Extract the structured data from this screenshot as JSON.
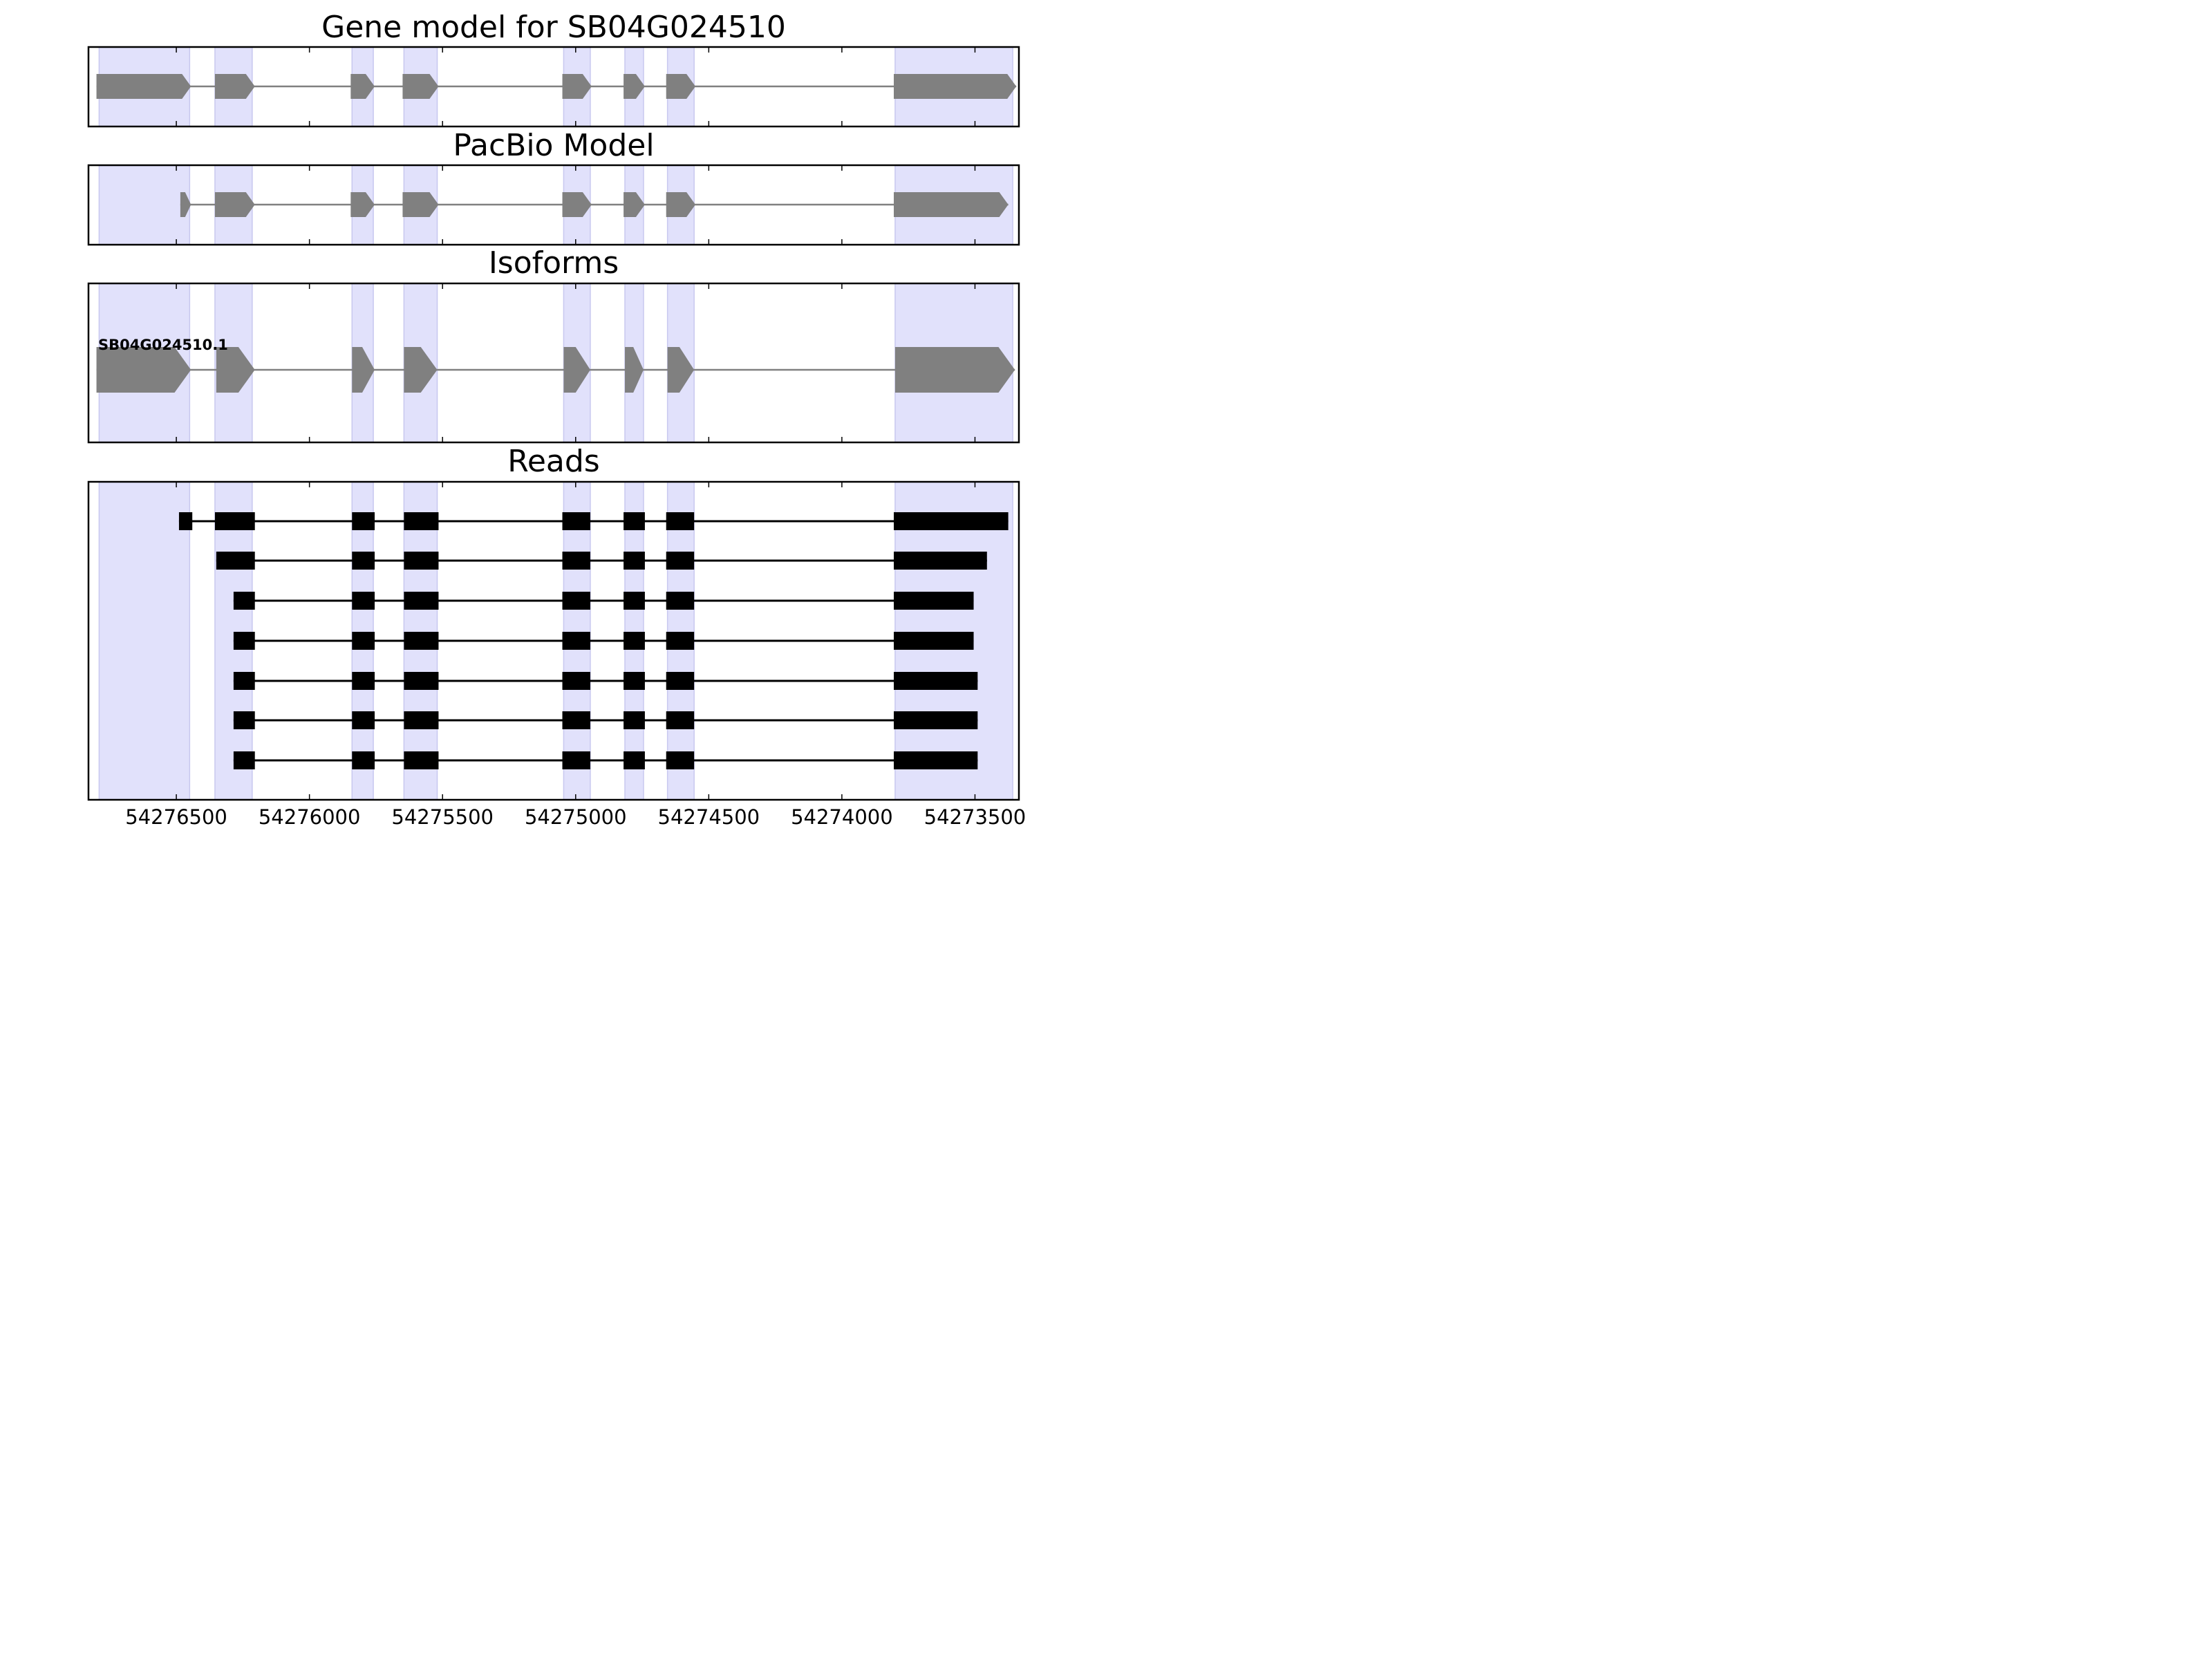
{
  "figure": {
    "x_axis": {
      "reversed": true,
      "range": [
        54276830,
        54273335
      ],
      "ticks": [
        54276500,
        54276000,
        54275500,
        54275000,
        54274500,
        54274000,
        54273500
      ],
      "tick_labels": [
        "54276500",
        "54276000",
        "54275500",
        "54275000",
        "54274500",
        "54274000",
        "54273500"
      ]
    },
    "exon_bands": [
      [
        54276790,
        54276450
      ],
      [
        54276355,
        54276215
      ],
      [
        54275840,
        54275760
      ],
      [
        54275645,
        54275520
      ],
      [
        54275045,
        54274945
      ],
      [
        54274815,
        54274745
      ],
      [
        54274655,
        54274555
      ],
      [
        54273800,
        54273358
      ]
    ],
    "colors": {
      "band": "#e1e1fb",
      "model_feature": "#808080",
      "read_feature": "#000000"
    },
    "panels": [
      {
        "id": "gene-model",
        "title": "Gene model for SB04G024510",
        "tracks": [
          {
            "style": "model",
            "exons": [
              [
                54276800,
                54276445
              ],
              [
                54276355,
                54276205
              ],
              [
                54275845,
                54275755
              ],
              [
                54275650,
                54275515
              ],
              [
                54275050,
                54274940
              ],
              [
                54274820,
                54274740
              ],
              [
                54274660,
                54274550
              ],
              [
                54273805,
                54273345
              ]
            ]
          }
        ]
      },
      {
        "id": "pacbio-model",
        "title": "PacBio Model",
        "tracks": [
          {
            "style": "model",
            "exons": [
              [
                54276485,
                54276445
              ],
              [
                54276355,
                54276205
              ],
              [
                54275845,
                54275755
              ],
              [
                54275650,
                54275515
              ],
              [
                54275050,
                54274940
              ],
              [
                54274820,
                54274740
              ],
              [
                54274660,
                54274550
              ],
              [
                54273805,
                54273375
              ]
            ]
          }
        ]
      },
      {
        "id": "isoforms",
        "title": "Isoforms",
        "tracks": [
          {
            "style": "model",
            "label": "SB04G024510.1",
            "exons": [
              [
                54276800,
                54276445
              ],
              [
                54276350,
                54276205
              ],
              [
                54275840,
                54275755
              ],
              [
                54275645,
                54275520
              ],
              [
                54275045,
                54274945
              ],
              [
                54274815,
                54274745
              ],
              [
                54274655,
                54274555
              ],
              [
                54273800,
                54273350
              ]
            ]
          }
        ]
      },
      {
        "id": "reads",
        "title": "Reads",
        "tracks": [
          {
            "style": "read",
            "exons": [
              [
                54276490,
                54276440
              ],
              [
                54276355,
                54276205
              ],
              [
                54275840,
                54275755
              ],
              [
                54275645,
                54275515
              ],
              [
                54275050,
                54274945
              ],
              [
                54274820,
                54274740
              ],
              [
                54274660,
                54274555
              ],
              [
                54273805,
                54273375
              ]
            ]
          },
          {
            "style": "read",
            "exons": [
              [
                54276350,
                54276205
              ],
              [
                54275840,
                54275755
              ],
              [
                54275645,
                54275515
              ],
              [
                54275050,
                54274945
              ],
              [
                54274820,
                54274740
              ],
              [
                54274660,
                54274555
              ],
              [
                54273805,
                54273455
              ]
            ]
          },
          {
            "style": "read",
            "exons": [
              [
                54276285,
                54276205
              ],
              [
                54275840,
                54275755
              ],
              [
                54275645,
                54275515
              ],
              [
                54275050,
                54274945
              ],
              [
                54274820,
                54274740
              ],
              [
                54274660,
                54274555
              ],
              [
                54273805,
                54273505
              ]
            ]
          },
          {
            "style": "read",
            "exons": [
              [
                54276285,
                54276205
              ],
              [
                54275840,
                54275755
              ],
              [
                54275645,
                54275515
              ],
              [
                54275050,
                54274945
              ],
              [
                54274820,
                54274740
              ],
              [
                54274660,
                54274555
              ],
              [
                54273805,
                54273505
              ]
            ]
          },
          {
            "style": "read",
            "exons": [
              [
                54276285,
                54276205
              ],
              [
                54275840,
                54275755
              ],
              [
                54275645,
                54275515
              ],
              [
                54275050,
                54274945
              ],
              [
                54274820,
                54274740
              ],
              [
                54274660,
                54274555
              ],
              [
                54273805,
                54273490
              ]
            ]
          },
          {
            "style": "read",
            "exons": [
              [
                54276285,
                54276205
              ],
              [
                54275840,
                54275755
              ],
              [
                54275645,
                54275515
              ],
              [
                54275050,
                54274945
              ],
              [
                54274820,
                54274740
              ],
              [
                54274660,
                54274555
              ],
              [
                54273805,
                54273490
              ]
            ]
          },
          {
            "style": "read",
            "exons": [
              [
                54276285,
                54276205
              ],
              [
                54275840,
                54275755
              ],
              [
                54275645,
                54275515
              ],
              [
                54275050,
                54274945
              ],
              [
                54274820,
                54274740
              ],
              [
                54274660,
                54274555
              ],
              [
                54273805,
                54273490
              ]
            ]
          }
        ]
      }
    ]
  }
}
